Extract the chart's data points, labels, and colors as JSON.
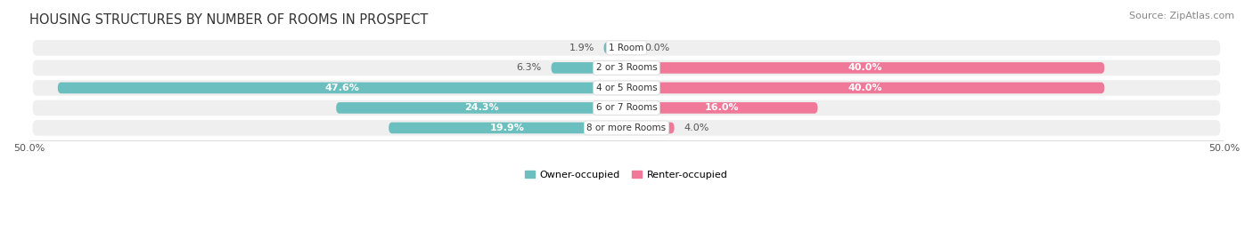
{
  "title": "HOUSING STRUCTURES BY NUMBER OF ROOMS IN PROSPECT",
  "source": "Source: ZipAtlas.com",
  "categories": [
    "1 Room",
    "2 or 3 Rooms",
    "4 or 5 Rooms",
    "6 or 7 Rooms",
    "8 or more Rooms"
  ],
  "owner_values": [
    1.9,
    6.3,
    47.6,
    24.3,
    19.9
  ],
  "renter_values": [
    0.0,
    40.0,
    40.0,
    16.0,
    4.0
  ],
  "owner_color": "#6CBFBF",
  "renter_color": "#F07898",
  "bar_bg_color": "#E8E8E8",
  "bar_bg_color2": "#F5F5F5",
  "xlim": 50.0,
  "legend_owner": "Owner-occupied",
  "legend_renter": "Renter-occupied",
  "title_fontsize": 10.5,
  "source_fontsize": 8,
  "label_fontsize": 8,
  "axis_label_fontsize": 8,
  "background_color": "#FFFFFF",
  "row_bg_color": "#EFEFEF",
  "row_bg_color2": "#E5E5E5",
  "sep_color": "#FFFFFF"
}
